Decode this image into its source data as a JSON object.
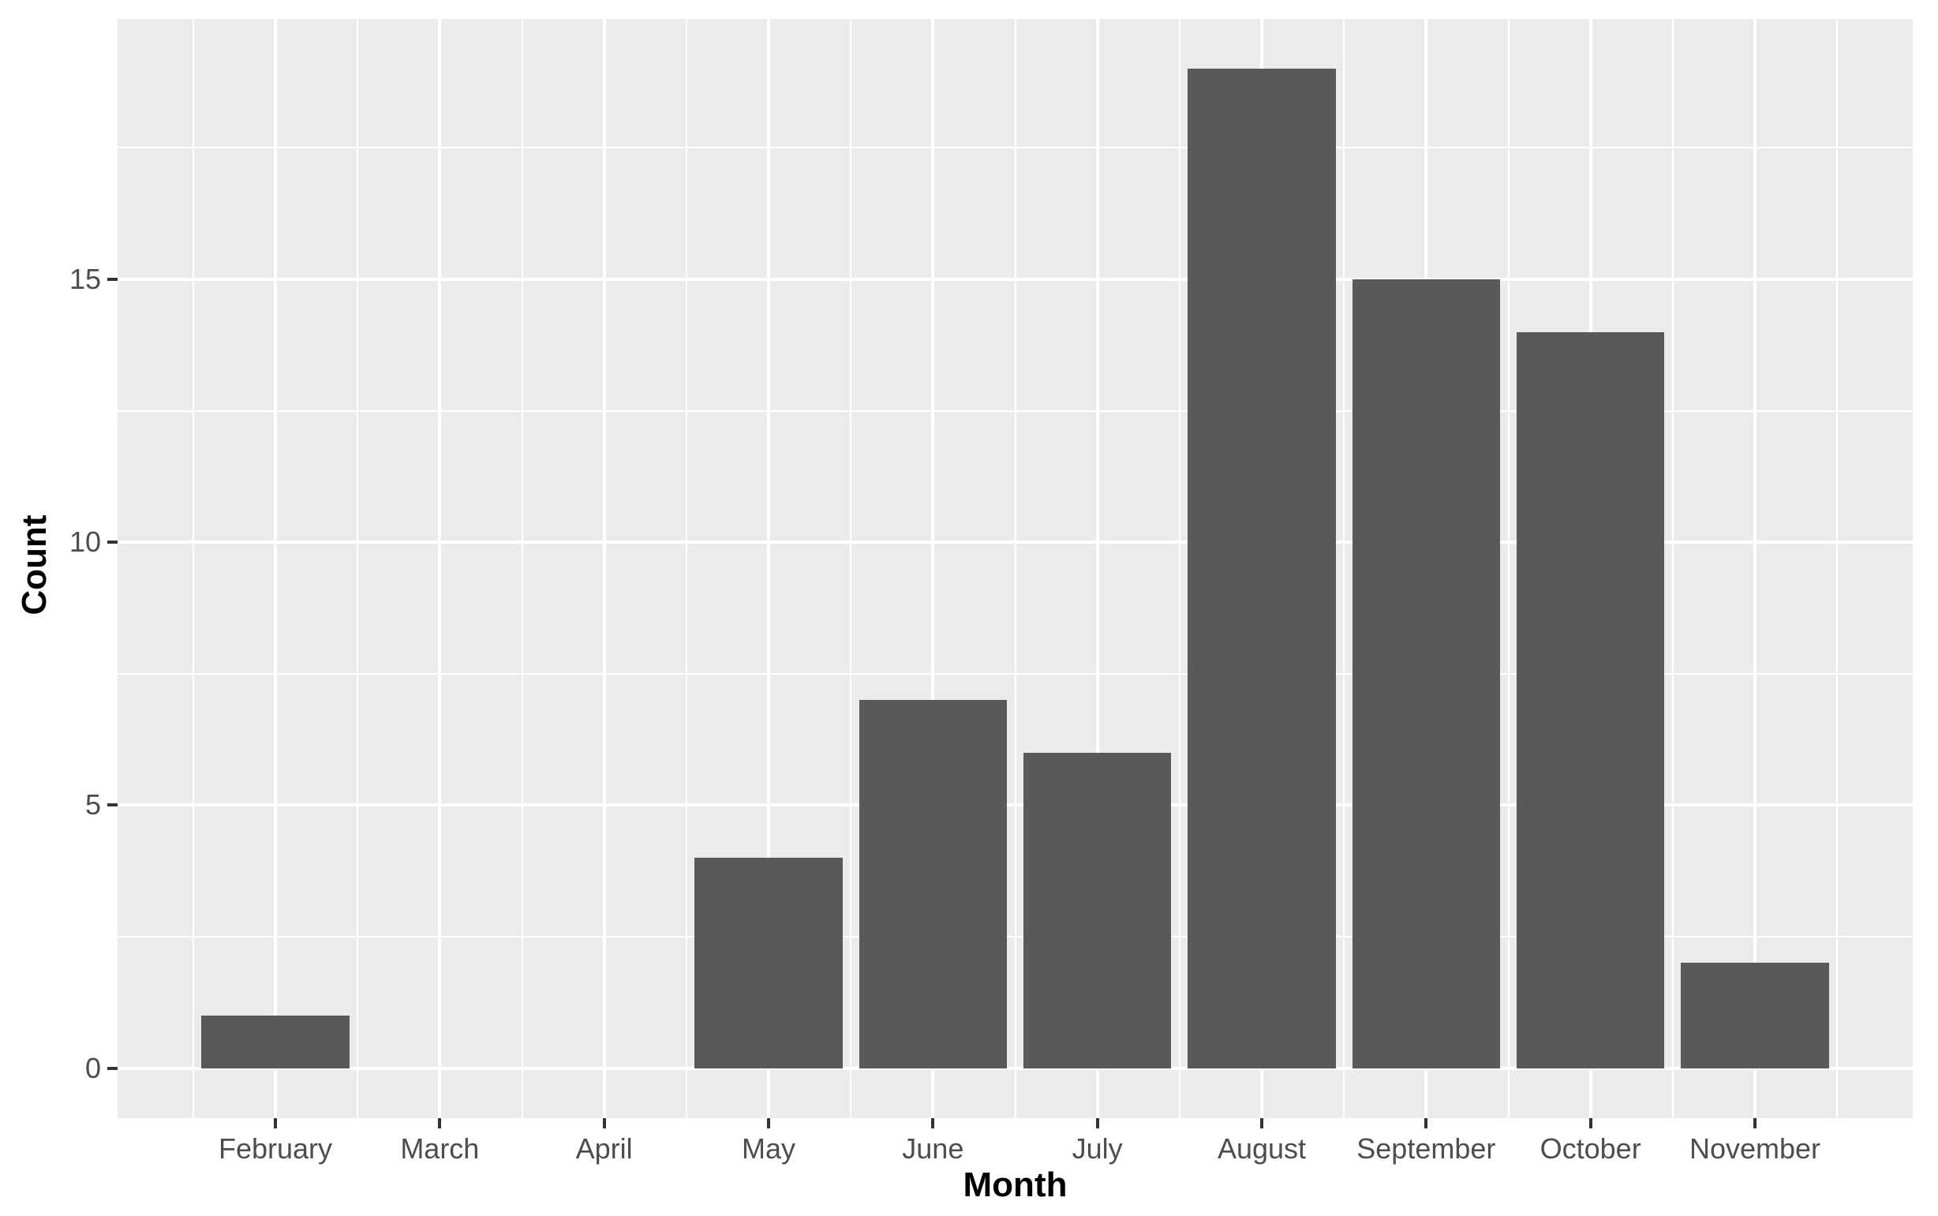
{
  "chart_data": {
    "type": "bar",
    "title": "",
    "xlabel": "Month",
    "ylabel": "Count",
    "categories": [
      "February",
      "March",
      "April",
      "May",
      "June",
      "July",
      "August",
      "September",
      "October",
      "November"
    ],
    "values": [
      1,
      0,
      0,
      4,
      7,
      6,
      19,
      15,
      14,
      2
    ],
    "y_ticks": [
      0,
      5,
      10,
      15
    ],
    "y_minor_ticks": [
      2.5,
      7.5,
      12.5,
      17.5
    ],
    "ylim": [
      0,
      19
    ],
    "grid": "white major and minor gridlines on gray panel",
    "legend_position": "none",
    "colors": {
      "bar_fill": "#595959",
      "panel_background": "#EBEBEB",
      "gridline": "#FFFFFF",
      "axis_text": "#4D4D4D",
      "axis_title": "#000000",
      "tick_mark": "#333333",
      "figure_background": "#FFFFFF"
    }
  }
}
